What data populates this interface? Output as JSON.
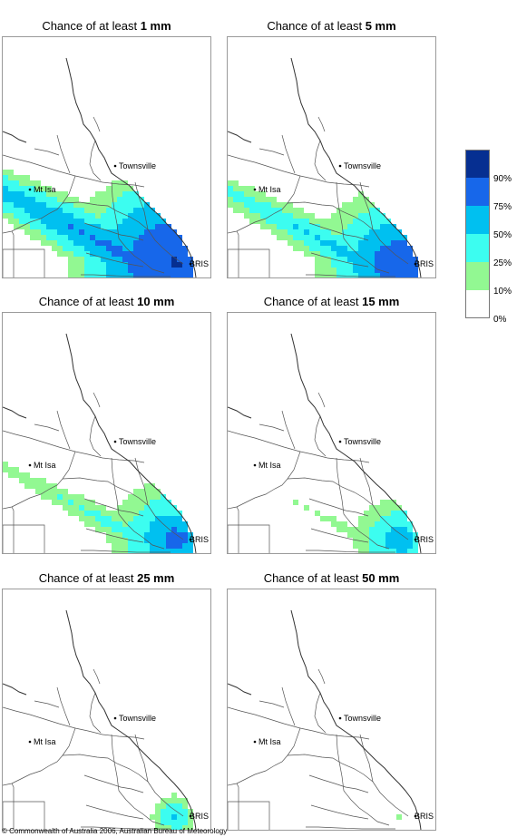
{
  "panels": [
    {
      "prefix": "Chance of at least ",
      "amount": "1 mm",
      "ramp": [
        0,
        0.95,
        0.8,
        0.62,
        0.4,
        0.12
      ]
    },
    {
      "prefix": "Chance of at least ",
      "amount": "5 mm",
      "ramp": [
        0,
        0.75,
        0.58,
        0.4,
        0.22,
        0
      ]
    },
    {
      "prefix": "Chance of at least ",
      "amount": "10 mm",
      "ramp": [
        0,
        0.58,
        0.42,
        0.25,
        0.1,
        0
      ]
    },
    {
      "prefix": "Chance of at least ",
      "amount": "15 mm",
      "ramp": [
        0,
        0.4,
        0.27,
        0.12,
        0,
        0
      ]
    },
    {
      "prefix": "Chance of at least ",
      "amount": "25 mm",
      "ramp": [
        0,
        0.2,
        0.12,
        0.04,
        0,
        0
      ]
    },
    {
      "prefix": "Chance of at least ",
      "amount": "50 mm",
      "ramp": [
        0,
        0.04,
        0,
        0,
        0,
        0
      ]
    }
  ],
  "places": {
    "townsville": "Townsville",
    "mt_isa": "Mt Isa",
    "brisbane": "BRIS"
  },
  "legend": {
    "labels": [
      "90%",
      "75%",
      "50%",
      "25%",
      "10%",
      "0%"
    ],
    "colors": [
      "#062f91",
      "#1767ea",
      "#00c0f0",
      "#3cfdf0",
      "#92f892",
      "#ffffff"
    ]
  },
  "copyright": "© Commonwealth of Australia 2006, Australian Bureau of Meteorology"
}
